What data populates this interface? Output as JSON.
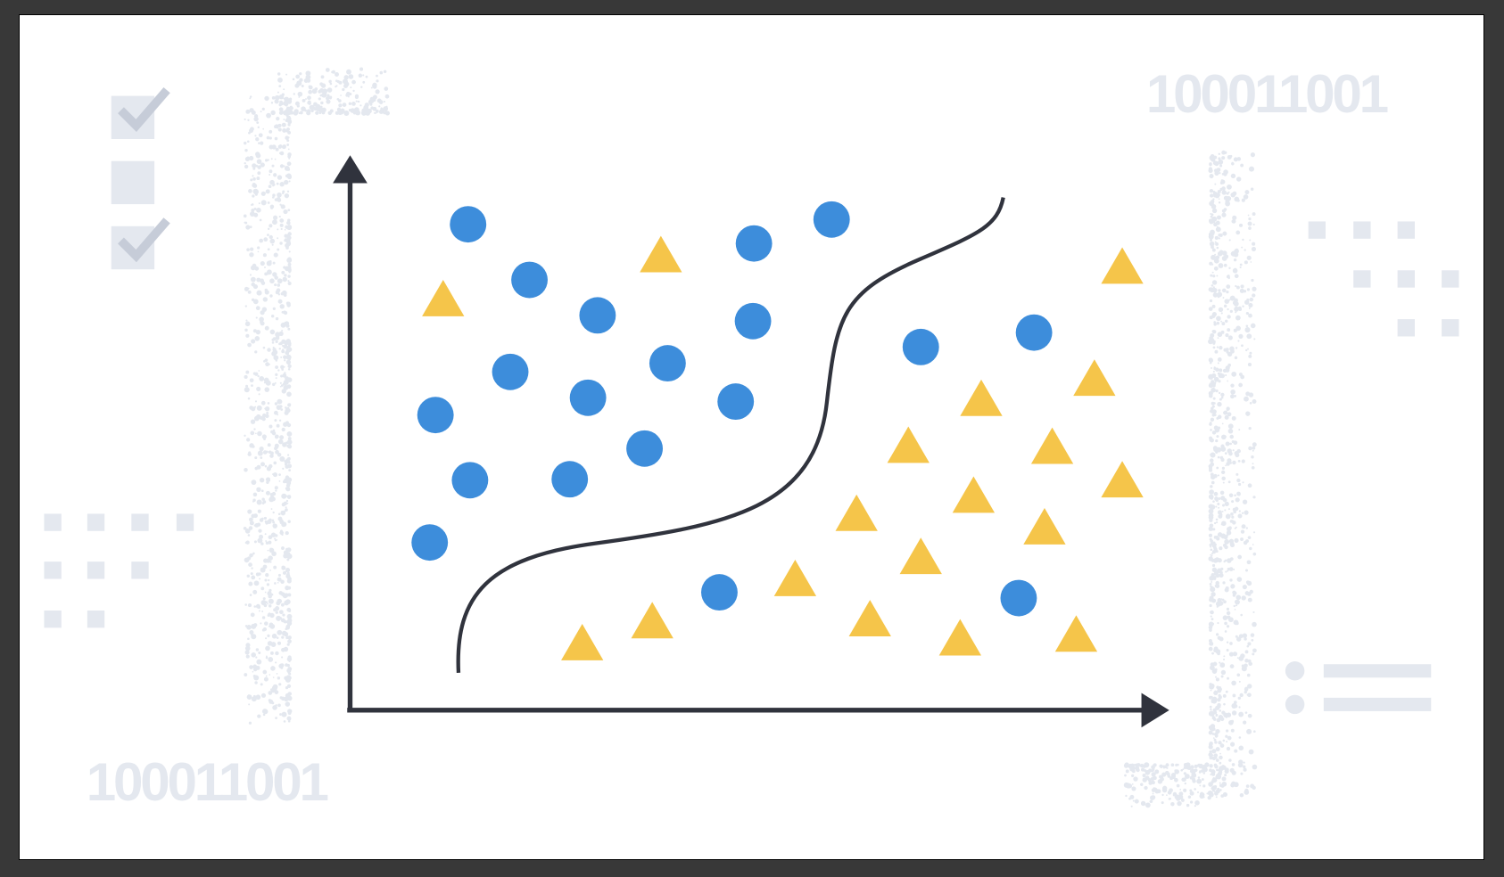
{
  "decor": {
    "binary_top_right": "100011001",
    "binary_bottom_left": "100011001"
  },
  "checklist": [
    {
      "checked": true
    },
    {
      "checked": false
    },
    {
      "checked": true
    }
  ],
  "colors": {
    "frame": "#383838",
    "class_a_circle": "#3d8ddb",
    "class_b_triangle": "#f5c54a",
    "axis_and_boundary": "#30333d",
    "decor_light": "#e4e8ef",
    "checkmark": "#c6ccd8"
  }
}
